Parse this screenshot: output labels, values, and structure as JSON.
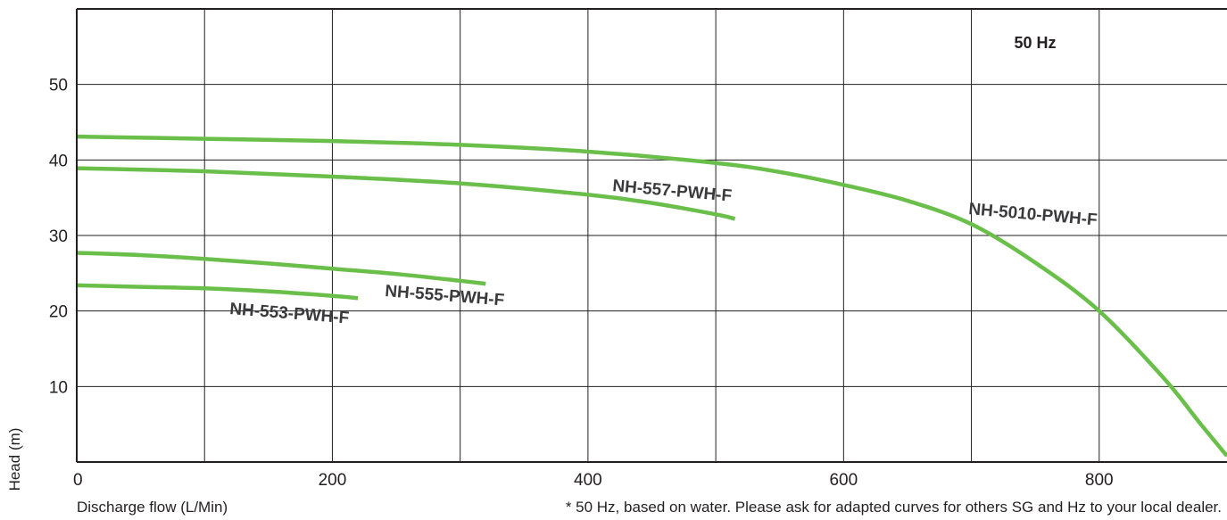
{
  "chart_data": {
    "type": "line",
    "annotation": "50 Hz",
    "xlabel": "Discharge flow (L/Min)",
    "ylabel": "Head (m)",
    "xlim": [
      0,
      900
    ],
    "ylim": [
      0,
      60
    ],
    "x_ticks": [
      "0",
      "200",
      "400",
      "600",
      "800"
    ],
    "y_ticks": [
      "10",
      "20",
      "30",
      "40",
      "50"
    ],
    "grid": true,
    "footnote": "* 50 Hz, based on water. Please ask for adapted curves for others SG and Hz to your local dealer.",
    "line_color": "#6abf4b",
    "series": [
      {
        "name": "NH-553-PWH-F",
        "x": [
          0,
          50,
          100,
          150,
          200,
          220
        ],
        "y": [
          23.4,
          23.2,
          23.0,
          22.6,
          22.0,
          21.7
        ]
      },
      {
        "name": "NH-555-PWH-F",
        "x": [
          0,
          50,
          100,
          150,
          200,
          250,
          300,
          320
        ],
        "y": [
          27.7,
          27.4,
          26.9,
          26.3,
          25.6,
          24.9,
          24.0,
          23.6
        ]
      },
      {
        "name": "NH-557-PWH-F",
        "x": [
          0,
          100,
          200,
          300,
          400,
          450,
          500,
          515
        ],
        "y": [
          38.9,
          38.5,
          37.8,
          36.9,
          35.4,
          34.3,
          32.8,
          32.2
        ]
      },
      {
        "name": "NH-5010-PWH-F",
        "x": [
          0,
          100,
          200,
          300,
          400,
          500,
          550,
          600,
          650,
          700,
          750,
          800,
          850,
          880,
          900
        ],
        "y": [
          43.1,
          42.8,
          42.5,
          42.0,
          41.1,
          39.6,
          38.4,
          36.7,
          34.6,
          31.5,
          26.4,
          20.0,
          11.2,
          4.9,
          0.8
        ]
      }
    ]
  }
}
